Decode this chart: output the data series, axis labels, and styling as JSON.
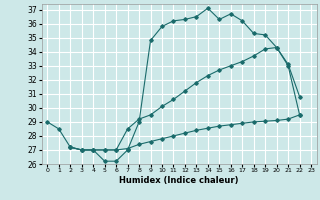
{
  "xlabel": "Humidex (Indice chaleur)",
  "bg_color": "#cde8e8",
  "grid_color": "#ffffff",
  "line_color": "#1a6b6b",
  "xlim": [
    -0.5,
    23.5
  ],
  "ylim": [
    26,
    37.4
  ],
  "xticks": [
    0,
    1,
    2,
    3,
    4,
    5,
    6,
    7,
    8,
    9,
    10,
    11,
    12,
    13,
    14,
    15,
    16,
    17,
    18,
    19,
    20,
    21,
    22,
    23
  ],
  "yticks": [
    26,
    27,
    28,
    29,
    30,
    31,
    32,
    33,
    34,
    35,
    36,
    37
  ],
  "line1_x": [
    0,
    1,
    2,
    3,
    4,
    5,
    6,
    7,
    8,
    9,
    10,
    11,
    12,
    13,
    14,
    15,
    16,
    17,
    18,
    19,
    20,
    21,
    22
  ],
  "line1_y": [
    29,
    28.5,
    27.2,
    27,
    27,
    26.2,
    26.2,
    27,
    29,
    34.8,
    35.8,
    36.2,
    36.3,
    36.5,
    37.1,
    36.3,
    36.7,
    36.2,
    35.3,
    35.2,
    34.3,
    33.1,
    30.8
  ],
  "line2_x": [
    2,
    3,
    4,
    5,
    6,
    7,
    8,
    9,
    10,
    11,
    12,
    13,
    14,
    15,
    16,
    17,
    18,
    19,
    20,
    21,
    22
  ],
  "line2_y": [
    27.2,
    27,
    27,
    27,
    27,
    28.5,
    29.2,
    29.5,
    30.1,
    30.6,
    31.2,
    31.8,
    32.3,
    32.7,
    33.0,
    33.3,
    33.7,
    34.2,
    34.3,
    33.0,
    29.5
  ],
  "line3_x": [
    2,
    3,
    4,
    5,
    6,
    7,
    8,
    9,
    10,
    11,
    12,
    13,
    14,
    15,
    16,
    17,
    18,
    19,
    20,
    21,
    22
  ],
  "line3_y": [
    27.2,
    27,
    27,
    27,
    27,
    27.1,
    27.4,
    27.6,
    27.8,
    28.0,
    28.2,
    28.4,
    28.55,
    28.7,
    28.8,
    28.9,
    29.0,
    29.05,
    29.1,
    29.2,
    29.5
  ]
}
